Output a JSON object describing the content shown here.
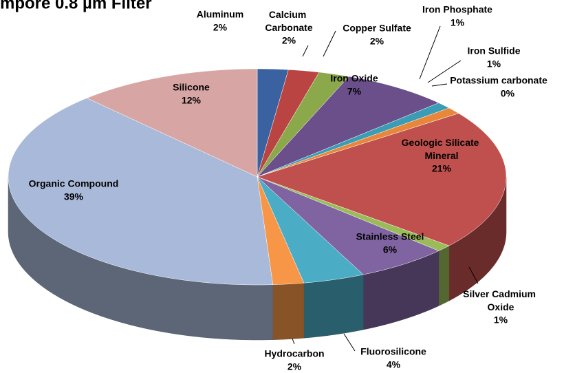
{
  "chart_data": {
    "type": "pie3d",
    "title": "mpore 0.8 µm Filter",
    "categories": [
      "Aluminum",
      "Calcium Carbonate",
      "Copper Sulfate",
      "Iron Oxide",
      "Iron Phosphate",
      "Iron Sulfide",
      "Potassium carbonate",
      "Geologic Silicate Mineral",
      "Silver Cadmium Oxide",
      "Stainless Steel",
      "Fluorosilicone",
      "Hydrocarbon",
      "Organic Compound",
      "Silicone"
    ],
    "values": [
      2,
      2,
      2,
      7,
      1,
      1,
      0,
      21,
      1,
      6,
      4,
      2,
      39,
      12
    ],
    "value_labels": [
      "2%",
      "2%",
      "2%",
      "7%",
      "1%",
      "1%",
      "0%",
      "21%",
      "1%",
      "6%",
      "4%",
      "2%",
      "39%",
      "12%"
    ],
    "colors": [
      "#3a62a0",
      "#b94441",
      "#8ba84a",
      "#6a4f8a",
      "#3a9cb5",
      "#e8873a",
      "#5a7cc0",
      "#c0504d",
      "#9bbb59",
      "#8064a2",
      "#4bacc6",
      "#f79646",
      "#a9b9d9",
      "#d7a6a4"
    ]
  }
}
